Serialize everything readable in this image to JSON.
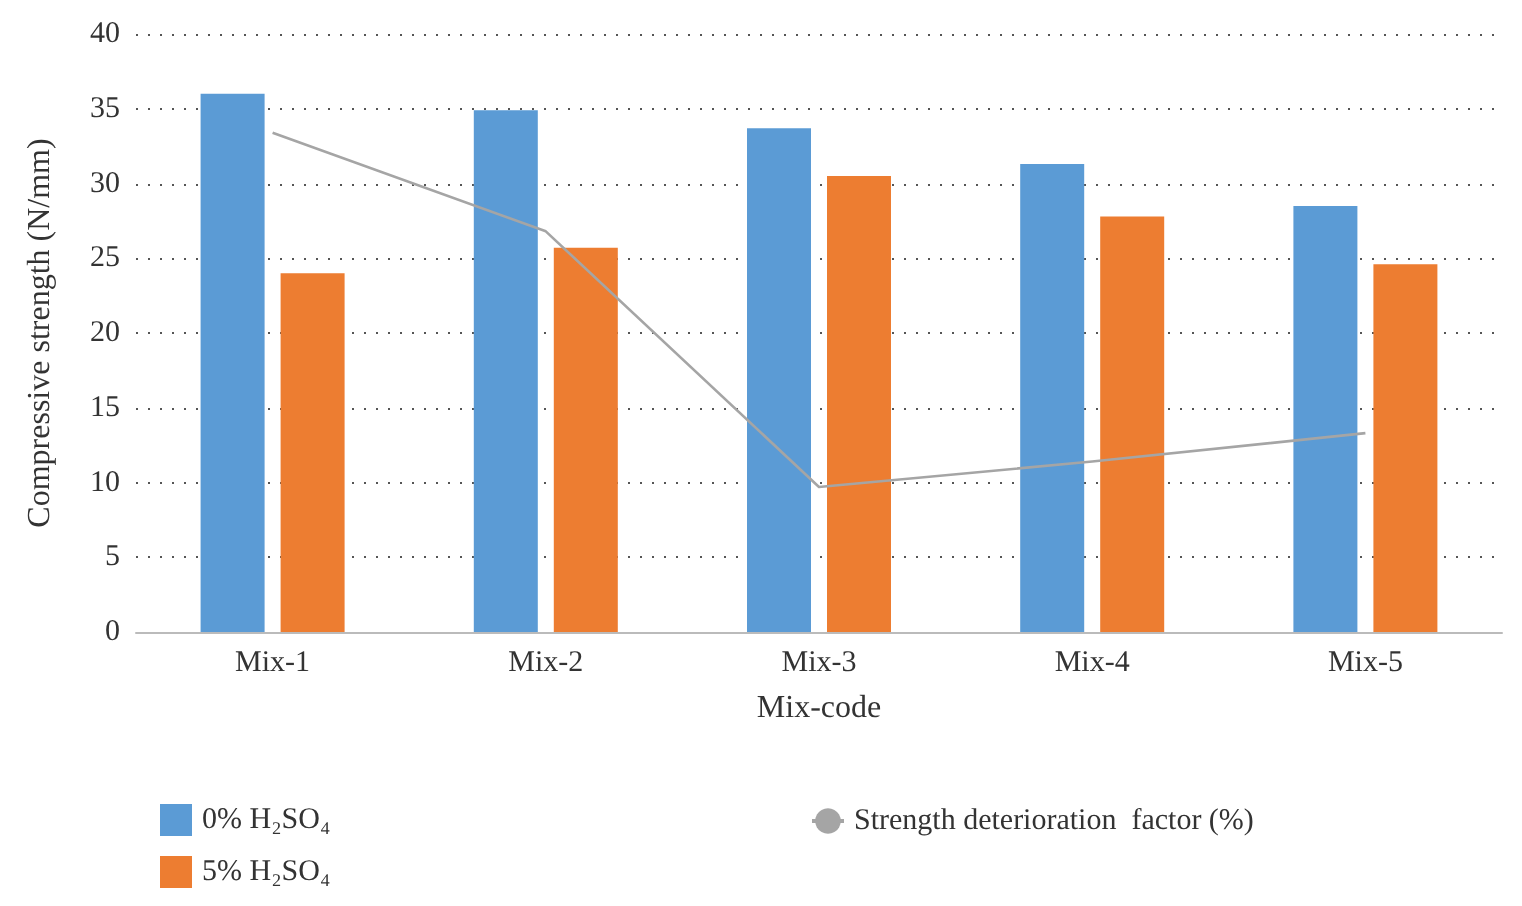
{
  "chart_data": {
    "type": "bar",
    "xlabel": "Mix-code",
    "ylabel": "Compressive strength (N/mm)",
    "categories": [
      "Mix-1",
      "Mix-2",
      "Mix-3",
      "Mix-4",
      "Mix-5"
    ],
    "series": [
      {
        "name": "0% H₂SO₄",
        "color": "#5b9bd5",
        "values": [
          36.0,
          34.9,
          33.7,
          31.3,
          28.5
        ]
      },
      {
        "name": "5% H₂SO₄",
        "color": "#ed7d31",
        "values": [
          24.0,
          25.7,
          30.5,
          27.8,
          24.6
        ]
      },
      {
        "name": "Strength deterioration  factor (%)",
        "type": "line",
        "color": "#a5a5a5",
        "values": [
          33.4,
          26.8,
          9.7,
          11.4,
          13.3
        ]
      }
    ],
    "ylim": [
      0,
      40
    ],
    "yticks": [
      0,
      5,
      10,
      15,
      20,
      25,
      30,
      35,
      40
    ],
    "grid": "y",
    "legend": "bottom",
    "marker": "none"
  }
}
